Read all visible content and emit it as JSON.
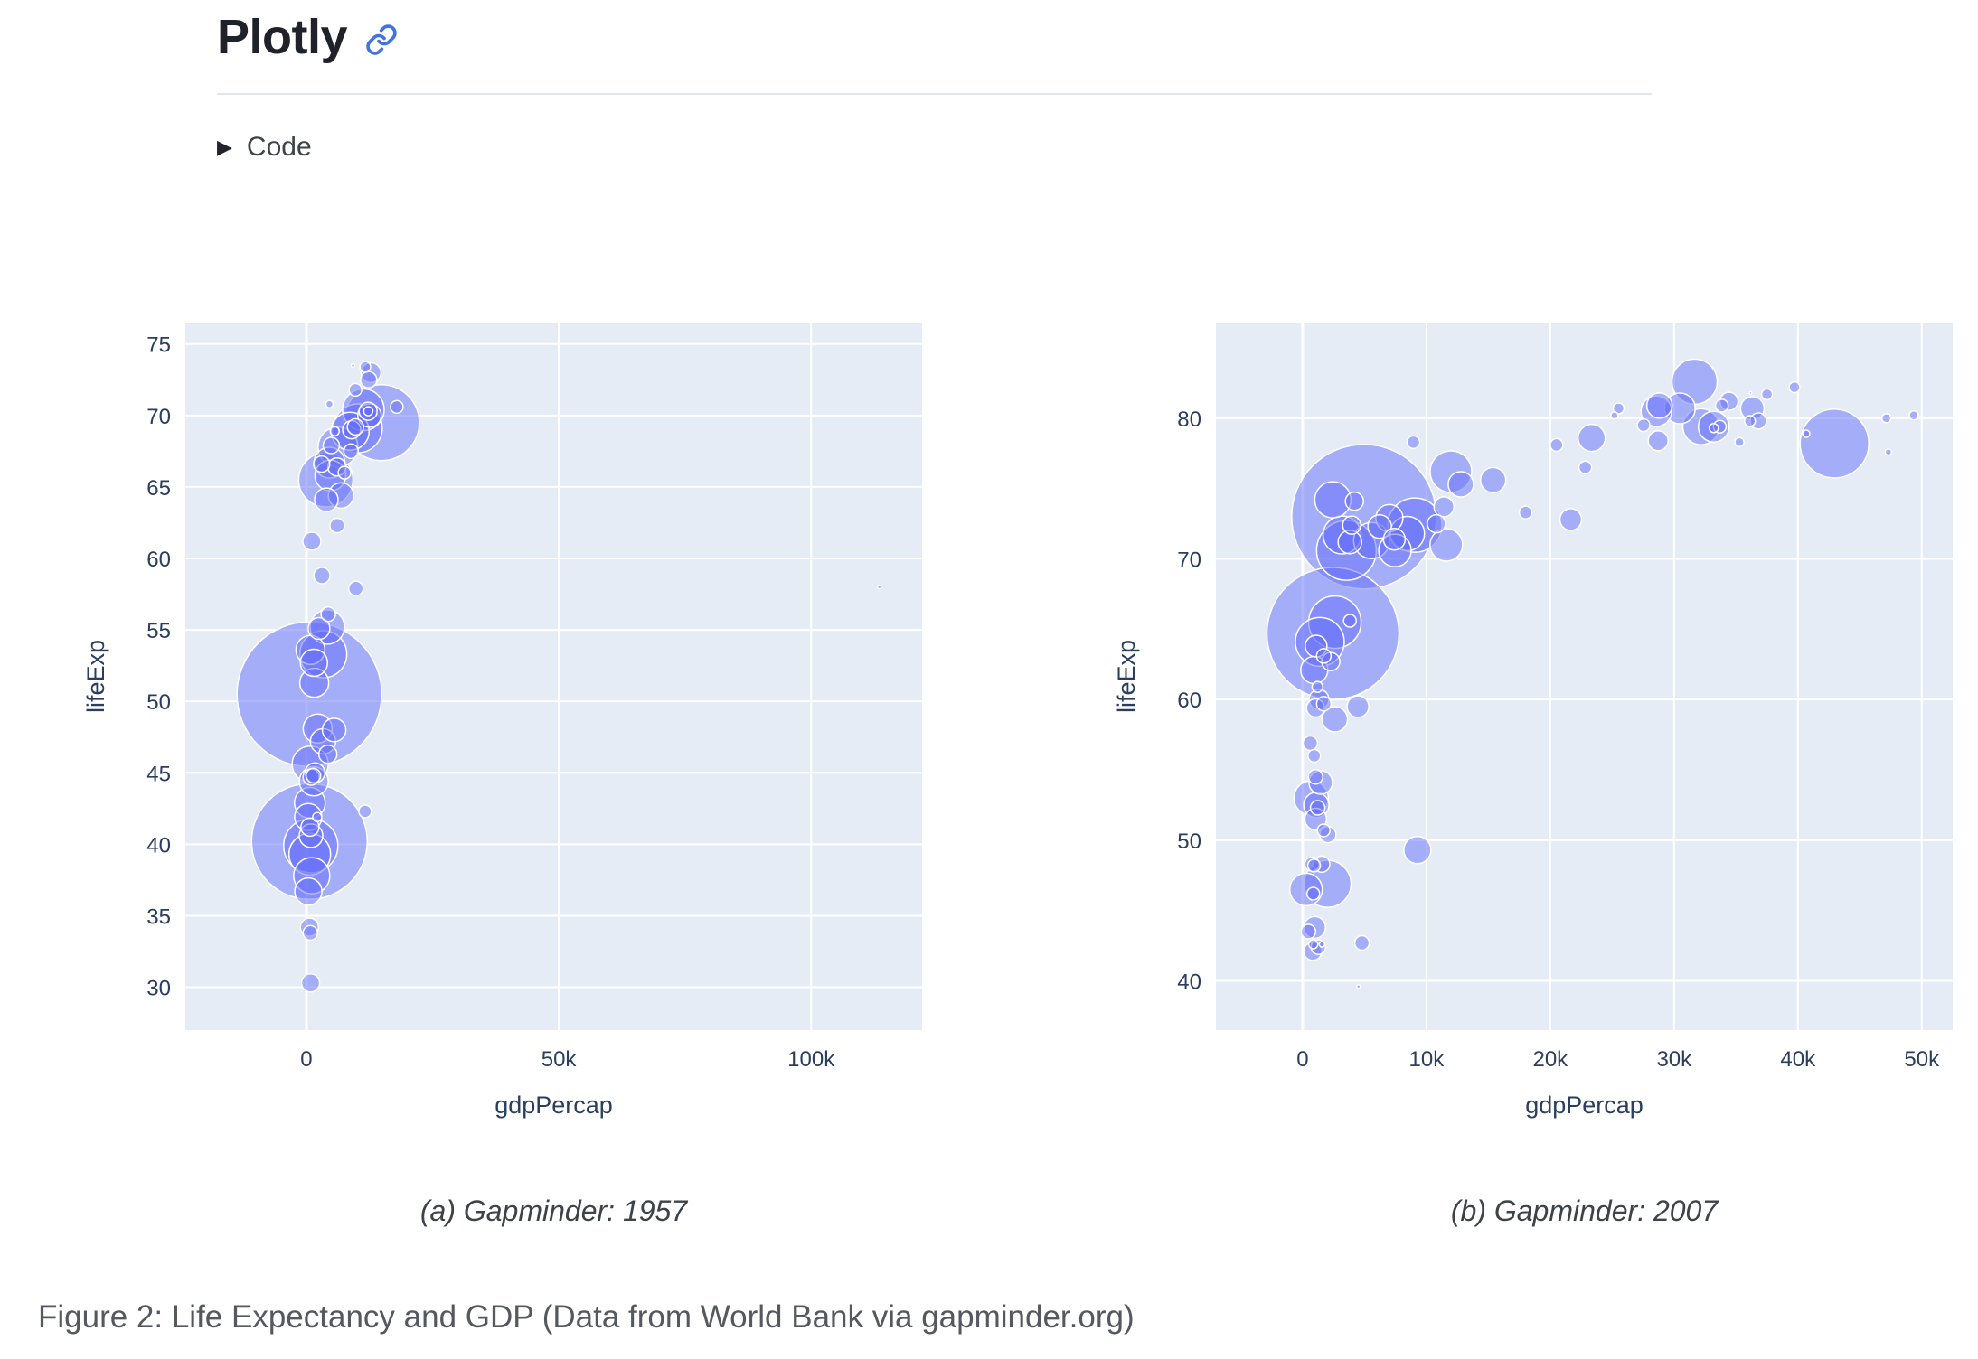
{
  "page": {
    "title": "Plotly",
    "code_label": "Code",
    "caret_glyph": "▶",
    "figure_caption": "Figure 2: Life Expectancy and GDP (Data from World Bank via gapminder.org)"
  },
  "colors": {
    "page_background": "#ffffff",
    "plot_background": "#e5ecf6",
    "gridline": "#ffffff",
    "axis_text": "#2a3f5f",
    "marker": "#636efa",
    "marker_outline": "#ffffff",
    "link_accent": "#3e73e0",
    "divider": "#e2e6ea",
    "heading_text": "#1f2329",
    "caption_text": "#55595f"
  },
  "chart_data": [
    {
      "type": "scatter",
      "variant": "bubble",
      "caption": "(a) Gapminder: 1957",
      "xlabel": "gdpPercap",
      "ylabel": "lifeExp",
      "xlim": [
        -24000,
        122000
      ],
      "ylim": [
        27,
        76.5
      ],
      "xticks": [
        [
          0,
          "0"
        ],
        [
          50000,
          "50k"
        ],
        [
          100000,
          "100k"
        ]
      ],
      "yticks": [
        [
          30,
          "30"
        ],
        [
          35,
          "35"
        ],
        [
          40,
          "40"
        ],
        [
          45,
          "45"
        ],
        [
          50,
          "50"
        ],
        [
          55,
          "55"
        ],
        [
          60,
          "60"
        ],
        [
          65,
          "65"
        ],
        [
          70,
          "70"
        ],
        [
          75,
          "75"
        ]
      ],
      "marker_color": "#636efa",
      "marker_opacity": 0.5,
      "legend": "none",
      "grid": true,
      "points": [
        [
          576,
          50.5,
          80
        ],
        [
          590,
          40.2,
          64
        ],
        [
          14847,
          69.5,
          42
        ],
        [
          3837,
          65.5,
          30
        ],
        [
          859,
          39.9,
          30
        ],
        [
          10188,
          69.1,
          27
        ],
        [
          3336,
          53.3,
          26
        ],
        [
          11283,
          70.4,
          23
        ],
        [
          662,
          39.3,
          23
        ],
        [
          6249,
          67.8,
          22
        ],
        [
          8663,
          68.9,
          21
        ],
        [
          747,
          45.6,
          20
        ],
        [
          1049,
          37.8,
          20
        ],
        [
          4131,
          55.2,
          19
        ],
        [
          4564,
          66.7,
          17
        ],
        [
          676,
          42.9,
          17
        ],
        [
          4734,
          65.8,
          17
        ],
        [
          1547,
          51.3,
          16
        ],
        [
          2219,
          48.1,
          16
        ],
        [
          794,
          53.6,
          16
        ],
        [
          1459,
          44.4,
          16
        ],
        [
          379,
          36.7,
          15
        ],
        [
          1488,
          52.7,
          15
        ],
        [
          350,
          41.9,
          15
        ],
        [
          3290,
          47.2,
          14
        ],
        [
          6857,
          64.4,
          14
        ],
        [
          12490,
          70.0,
          13
        ],
        [
          5487,
          48.0,
          13
        ],
        [
          905,
          40.6,
          13
        ],
        [
          3943,
          64.1,
          13
        ],
        [
          2487,
          55.1,
          12
        ],
        [
          1694,
          45.0,
          11
        ],
        [
          12790,
          73.0,
          11
        ],
        [
          12217,
          70.3,
          10
        ],
        [
          821,
          30.3,
          10
        ],
        [
          598,
          34.2,
          10
        ],
        [
          4246,
          46.3,
          10
        ],
        [
          8964,
          69.0,
          10
        ],
        [
          6040,
          66.4,
          10
        ],
        [
          698,
          41.2,
          10
        ],
        [
          1072,
          61.2,
          10
        ],
        [
          9715,
          69.2,
          9
        ],
        [
          12329,
          72.5,
          9
        ],
        [
          3068,
          58.8,
          9
        ],
        [
          4916,
          67.9,
          9
        ],
        [
          3009,
          66.6,
          9
        ],
        [
          944,
          44.7,
          9
        ],
        [
          9802,
          57.9,
          8
        ],
        [
          4315,
          56.1,
          8
        ],
        [
          6092,
          62.3,
          8
        ],
        [
          8843,
          67.5,
          8
        ],
        [
          1378,
          44.8,
          8
        ],
        [
          765,
          33.8,
          8
        ],
        [
          17909,
          70.6,
          7
        ],
        [
          9698,
          71.8,
          7
        ],
        [
          7545,
          66.0,
          7
        ],
        [
          11626,
          42.3,
          7
        ],
        [
          11654,
          73.4,
          6
        ],
        [
          5599,
          68.9,
          5
        ],
        [
          2128,
          41.9,
          5
        ],
        [
          12247,
          70.3,
          5
        ],
        [
          4562,
          70.8,
          4
        ],
        [
          9244,
          73.5,
          2
        ],
        [
          113523,
          58.0,
          2
        ]
      ]
    },
    {
      "type": "scatter",
      "variant": "bubble",
      "caption": "(b) Gapminder: 2007",
      "xlabel": "gdpPercap",
      "ylabel": "lifeExp",
      "xlim": [
        -7000,
        52500
      ],
      "ylim": [
        36.5,
        86.8
      ],
      "xticks": [
        [
          0,
          "0"
        ],
        [
          10000,
          "10k"
        ],
        [
          20000,
          "20k"
        ],
        [
          30000,
          "30k"
        ],
        [
          40000,
          "40k"
        ],
        [
          50000,
          "50k"
        ]
      ],
      "yticks": [
        [
          40,
          "40"
        ],
        [
          50,
          "50"
        ],
        [
          60,
          "60"
        ],
        [
          70,
          "70"
        ],
        [
          80,
          "80"
        ]
      ],
      "marker_color": "#636efa",
      "marker_opacity": 0.5,
      "legend": "none",
      "grid": true,
      "points": [
        [
          4959,
          73.0,
          80
        ],
        [
          2452,
          64.7,
          73
        ],
        [
          42952,
          78.2,
          38
        ],
        [
          3541,
          70.6,
          33
        ],
        [
          9066,
          72.4,
          30
        ],
        [
          2606,
          65.5,
          29
        ],
        [
          1391,
          64.1,
          27
        ],
        [
          2014,
          46.9,
          26
        ],
        [
          31656,
          82.6,
          25
        ],
        [
          11978,
          76.2,
          23
        ],
        [
          3190,
          71.7,
          21
        ],
        [
          2442,
          74.2,
          20
        ],
        [
          32170,
          79.4,
          20
        ],
        [
          5581,
          71.3,
          20
        ],
        [
          691,
          53.0,
          19
        ],
        [
          8458,
          71.8,
          19
        ],
        [
          11606,
          71.0,
          18
        ],
        [
          7458,
          70.6,
          18
        ],
        [
          278,
          46.5,
          18
        ],
        [
          30470,
          80.7,
          17
        ],
        [
          33203,
          79.4,
          17
        ],
        [
          28570,
          80.5,
          17
        ],
        [
          944,
          62.1,
          15
        ],
        [
          23348,
          78.6,
          15
        ],
        [
          9270,
          49.3,
          15
        ],
        [
          7007,
          72.9,
          15
        ],
        [
          28821,
          80.9,
          14
        ],
        [
          12779,
          75.3,
          14
        ],
        [
          15390,
          75.6,
          14
        ],
        [
          1107,
          52.5,
          14
        ],
        [
          2602,
          58.6,
          14
        ],
        [
          1463,
          54.1,
          13
        ],
        [
          3820,
          71.2,
          13
        ],
        [
          6223,
          72.3,
          13
        ],
        [
          36319,
          80.7,
          13
        ],
        [
          975,
          43.8,
          12
        ],
        [
          1056,
          51.5,
          12
        ],
        [
          21655,
          72.8,
          12
        ],
        [
          4471,
          59.5,
          12
        ],
        [
          1091,
          63.8,
          12
        ],
        [
          7409,
          71.4,
          12
        ],
        [
          34435,
          81.2,
          10
        ],
        [
          824,
          42.1,
          10
        ],
        [
          1328,
          60.0,
          11
        ],
        [
          11416,
          73.7,
          11
        ],
        [
          28718,
          78.4,
          11
        ],
        [
          36798,
          79.8,
          9
        ],
        [
          2042,
          50.4,
          9
        ],
        [
          1545,
          48.3,
          9
        ],
        [
          4797,
          42.7,
          8
        ],
        [
          470,
          43.5,
          8
        ],
        [
          1271,
          42.4,
          8
        ],
        [
          8948,
          78.3,
          7
        ],
        [
          27538,
          79.5,
          7
        ],
        [
          20510,
          78.1,
          7
        ],
        [
          33693,
          79.4,
          7
        ],
        [
          22833,
          76.5,
          7
        ],
        [
          18009,
          73.3,
          7
        ],
        [
          33860,
          80.9,
          7
        ],
        [
          36126,
          79.8,
          6
        ],
        [
          37506,
          81.7,
          6
        ],
        [
          25523,
          80.7,
          6
        ],
        [
          39725,
          82.2,
          6
        ],
        [
          863,
          42.6,
          5
        ],
        [
          35278,
          78.3,
          5
        ],
        [
          33207,
          79.3,
          5
        ],
        [
          49357,
          80.2,
          5
        ],
        [
          47143,
          80.0,
          5
        ],
        [
          40676,
          78.9,
          4
        ],
        [
          25185,
          80.2,
          4
        ],
        [
          47307,
          77.6,
          3.5
        ],
        [
          4513,
          39.6,
          2
        ],
        [
          1569,
          42.6,
          3
        ],
        [
          36181,
          81.8,
          1.5
        ],
        [
          1202,
          60.9,
          6
        ],
        [
          3822,
          65.6,
          7
        ],
        [
          10808,
          72.5,
          10
        ],
        [
          3970,
          72.4,
          10
        ],
        [
          1714,
          59.7,
          8
        ],
        [
          1045,
          59.4,
          10
        ],
        [
          620,
          56.9,
          8
        ],
        [
          1043,
          54.5,
          8
        ],
        [
          1217,
          52.3,
          8
        ],
        [
          759,
          48.3,
          8
        ],
        [
          1712,
          63.1,
          8
        ],
        [
          942,
          56.0,
          7
        ],
        [
          863,
          46.2,
          7
        ],
        [
          1704,
          50.7,
          7
        ],
        [
          926,
          48.2,
          7
        ],
        [
          4185,
          74.1,
          10
        ],
        [
          2281,
          62.7,
          10
        ]
      ]
    }
  ]
}
